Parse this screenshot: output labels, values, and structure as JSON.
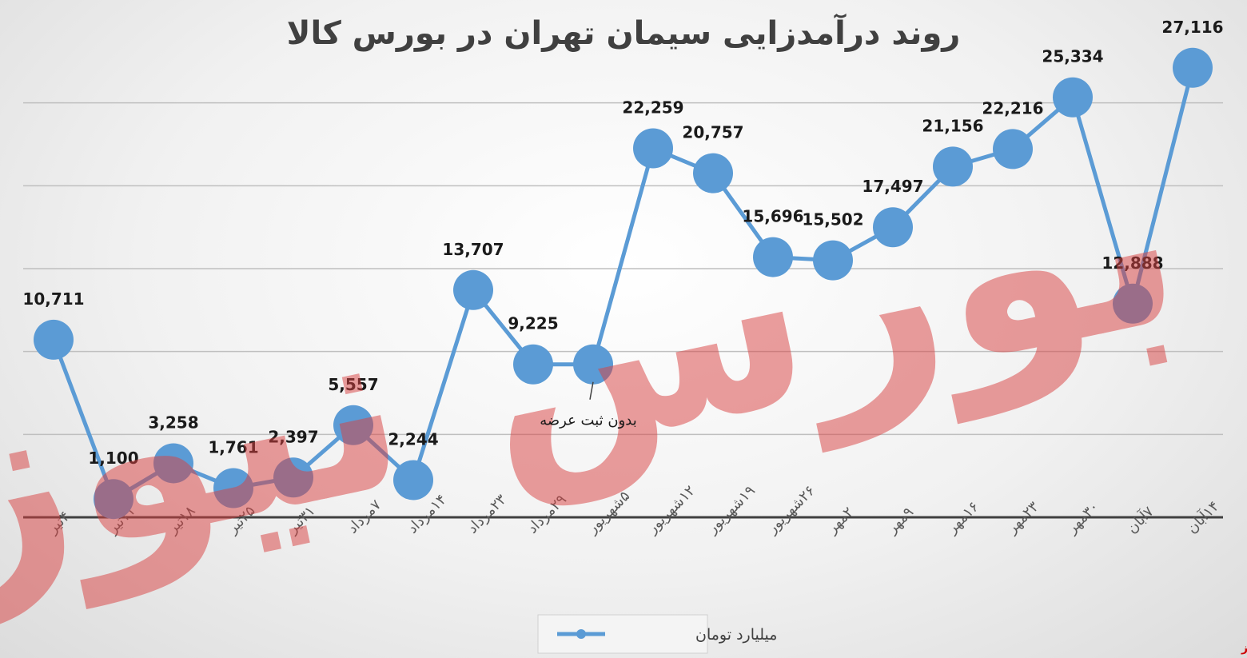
{
  "chart_data": {
    "type": "line",
    "title": "روند درآمدزایی سیمان تهران در بورس کالا",
    "xlabel": "",
    "ylabel": "",
    "ylim": [
      0,
      30000
    ],
    "grid": true,
    "legend_position": "bottom",
    "categories": [
      "۴تیر",
      "۱۱تیر",
      "۱۸تیر",
      "۲۵تیر",
      "۳۱تیر",
      "۷مرداد",
      "۱۴مرداد",
      "۲۳مرداد",
      "۲۹مرداد",
      "۵شهریور",
      "۱۲شهریور",
      "۱۹شهریور",
      "۲۶شهریور",
      "۲مهر",
      "۹مهر",
      "۱۶مهر",
      "۲۳مهر",
      "۳۰مهر",
      "۷آبان",
      "۱۴آبان"
    ],
    "series": [
      {
        "name": "میلیارد تومان",
        "color": "#5b9bd5",
        "values": [
          10711,
          1100,
          3258,
          1761,
          2397,
          5557,
          2244,
          13707,
          9225,
          9225,
          22259,
          20757,
          15696,
          15502,
          17497,
          21156,
          22216,
          25334,
          12888,
          27116
        ],
        "labels": [
          "10,711",
          "1,100",
          "3,258",
          "1,761",
          "2,397",
          "5,557",
          "2,244",
          "13,707",
          "9,225",
          "",
          "22,259",
          "20,757",
          "15,696",
          "15,502",
          "17,497",
          "21,156",
          "22,216",
          "25,334",
          "12,888",
          "27,116"
        ]
      }
    ],
    "annotations": [
      {
        "category_index": 9,
        "text": "بدون ثبت عرضه"
      }
    ]
  },
  "watermark": {
    "text": "بورس نیوز",
    "color": "#d94040"
  },
  "source_tag": "بورس‌نیوز"
}
